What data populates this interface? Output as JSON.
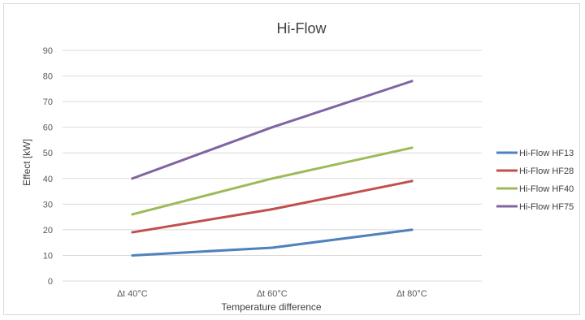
{
  "chart_data": {
    "type": "line",
    "title": "Hi-Flow",
    "xlabel": "Temperature difference",
    "ylabel": "Effect  [kW]",
    "categories": [
      "∆t 40°C",
      "∆t 60°C",
      "∆t 80°C"
    ],
    "ylim": [
      0,
      90
    ],
    "yticks": [
      0,
      10,
      20,
      30,
      40,
      50,
      60,
      70,
      80,
      90
    ],
    "grid": true,
    "legend_position": "right",
    "series": [
      {
        "name": "Hi-Flow HF13",
        "color": "#4f81bd",
        "values": [
          10,
          13,
          20
        ]
      },
      {
        "name": "Hi-Flow HF28",
        "color": "#c0504d",
        "values": [
          19,
          28,
          39
        ]
      },
      {
        "name": "Hi-Flow HF40",
        "color": "#9bbb59",
        "values": [
          26,
          40,
          52
        ]
      },
      {
        "name": "Hi-Flow HF75",
        "color": "#8064a2",
        "values": [
          40,
          60,
          78
        ]
      }
    ]
  }
}
